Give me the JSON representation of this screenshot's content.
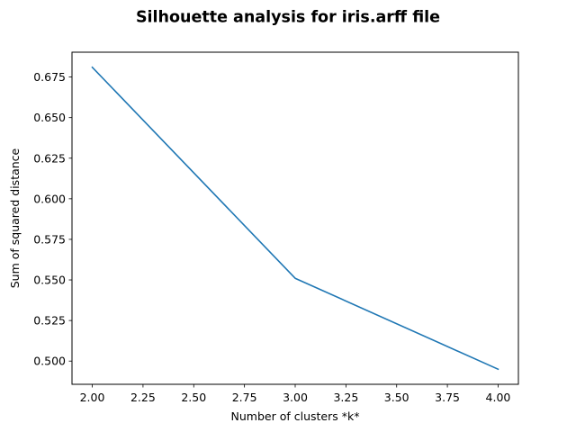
{
  "chart_data": {
    "type": "line",
    "title": "Silhouette analysis for iris.arff file",
    "xlabel": "Number of clusters *k*",
    "ylabel": "Sum of squared distance",
    "x": [
      2,
      3,
      4
    ],
    "series": [
      {
        "values": [
          0.681,
          0.551,
          0.495
        ],
        "color": "#1f77b4"
      }
    ],
    "xlim": [
      1.9,
      4.1
    ],
    "ylim": [
      0.4857,
      0.6903
    ],
    "xticks": [
      2.0,
      2.25,
      2.5,
      2.75,
      3.0,
      3.25,
      3.5,
      3.75,
      4.0
    ],
    "xtick_labels": [
      "2.00",
      "2.25",
      "2.50",
      "2.75",
      "3.00",
      "3.25",
      "3.50",
      "3.75",
      "4.00"
    ],
    "yticks": [
      0.5,
      0.525,
      0.55,
      0.575,
      0.6,
      0.625,
      0.65,
      0.675
    ],
    "ytick_labels": [
      "0.500",
      "0.525",
      "0.550",
      "0.575",
      "0.600",
      "0.625",
      "0.650",
      "0.675"
    ],
    "grid": false,
    "legend": false
  }
}
